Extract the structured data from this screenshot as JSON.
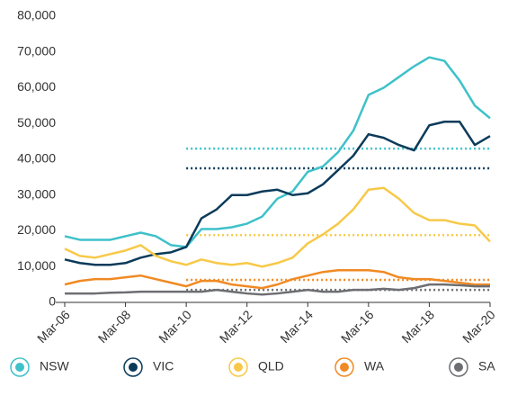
{
  "chart_data": {
    "type": "line",
    "x": [
      2006,
      2006.5,
      2007,
      2007.5,
      2008,
      2008.5,
      2009,
      2009.5,
      2010,
      2010.5,
      2011,
      2011.5,
      2012,
      2012.5,
      2013,
      2013.5,
      2014,
      2014.5,
      2015,
      2015.5,
      2016,
      2016.5,
      2017,
      2017.5,
      2018,
      2018.5,
      2019,
      2019.5,
      2020
    ],
    "series": [
      {
        "name": "NSW",
        "color": "#3ec1c9",
        "values": [
          18500,
          17500,
          17500,
          17500,
          18500,
          19500,
          18500,
          16000,
          15500,
          20500,
          20500,
          21000,
          22000,
          24000,
          29000,
          31000,
          36500,
          38000,
          42000,
          48000,
          58000,
          60000,
          63000,
          66000,
          68500,
          67500,
          62000,
          55000,
          51500
        ],
        "average": 43000
      },
      {
        "name": "VIC",
        "color": "#0b3b5a",
        "values": [
          12000,
          11000,
          10500,
          10500,
          11000,
          12500,
          13500,
          14000,
          15500,
          23500,
          26000,
          30000,
          30000,
          31000,
          31500,
          30000,
          30500,
          33000,
          37000,
          41000,
          47000,
          46000,
          44000,
          42500,
          49500,
          50500,
          50500,
          44000,
          46500
        ],
        "average": 37500
      },
      {
        "name": "QLD",
        "color": "#f7c948",
        "values": [
          15000,
          13000,
          12500,
          13500,
          14500,
          16000,
          13000,
          11500,
          10500,
          12000,
          11000,
          10500,
          11000,
          10000,
          11000,
          12500,
          16500,
          19000,
          22000,
          26000,
          31500,
          32000,
          29000,
          25000,
          23000,
          23000,
          22000,
          21500,
          17000
        ],
        "average": 18800
      },
      {
        "name": "WA",
        "color": "#f08a24",
        "values": [
          5000,
          6000,
          6500,
          6500,
          7000,
          7500,
          6500,
          5500,
          4500,
          6000,
          6000,
          5000,
          4500,
          4000,
          5000,
          6500,
          7500,
          8500,
          9000,
          9000,
          9000,
          8500,
          7000,
          6500,
          6500,
          6000,
          5500,
          5000,
          5000
        ],
        "average": 6300
      },
      {
        "name": "SA",
        "color": "#6d6e71",
        "values": [
          2500,
          2500,
          2500,
          2700,
          2800,
          3000,
          3000,
          3000,
          3000,
          3000,
          3500,
          3000,
          2500,
          2200,
          2500,
          3000,
          3500,
          3000,
          3000,
          3500,
          3500,
          3800,
          3500,
          4000,
          5000,
          5000,
          4800,
          4500,
          4500
        ],
        "average": 3500
      }
    ],
    "average_start": 2010,
    "xlim": [
      2006,
      2020
    ],
    "xticks": [
      {
        "value": 2006,
        "label": "Mar-06"
      },
      {
        "value": 2008,
        "label": "Mar-08"
      },
      {
        "value": 2010,
        "label": "Mar-10"
      },
      {
        "value": 2012,
        "label": "Mar-12"
      },
      {
        "value": 2014,
        "label": "Mar-14"
      },
      {
        "value": 2016,
        "label": "Mar-16"
      },
      {
        "value": 2018,
        "label": "Mar-18"
      },
      {
        "value": 2020,
        "label": "Mar-20"
      }
    ],
    "ylim": [
      0,
      80000
    ],
    "yticks": [
      0,
      {
        "value": 10000,
        "label": "10,000"
      },
      {
        "value": 20000,
        "label": "20,000"
      },
      {
        "value": 30000,
        "label": "30,000"
      },
      {
        "value": 40000,
        "label": "40,000"
      },
      {
        "value": 50000,
        "label": "50,000"
      },
      {
        "value": 60000,
        "label": "60,000"
      },
      {
        "value": 70000,
        "label": "70,000"
      },
      {
        "value": 80000,
        "label": "80,000"
      }
    ],
    "legend": "bottom"
  }
}
